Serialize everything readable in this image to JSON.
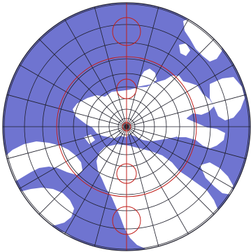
{
  "map": {
    "projection": "azimuthal",
    "ocean_color": "#6f74d0",
    "land_color": "#ffffff",
    "graticule_color": "#1e1e2a",
    "indicatrix_color": "#c2201c",
    "background_color": "#ffffff"
  }
}
